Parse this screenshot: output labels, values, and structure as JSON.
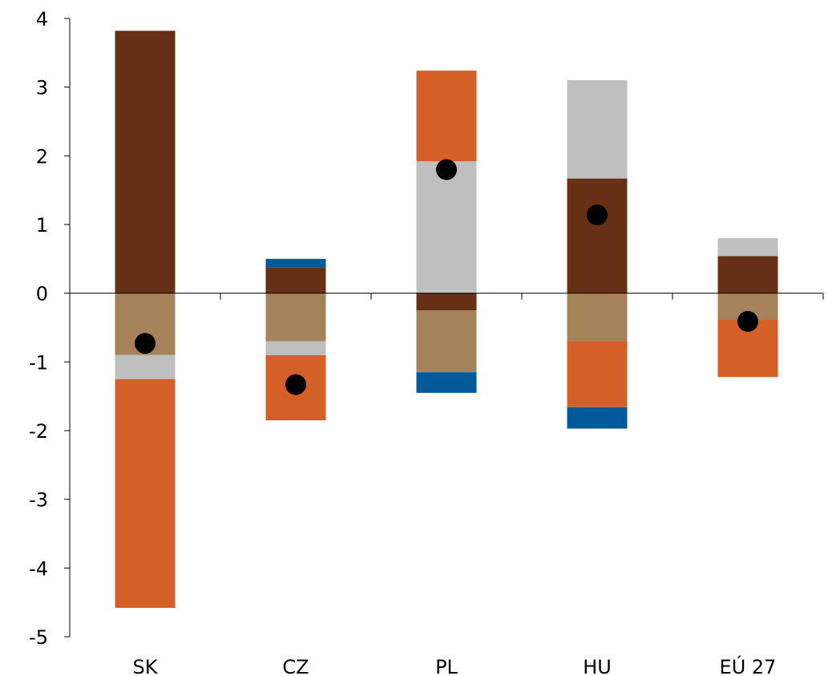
{
  "chart_data": {
    "type": "bar",
    "stacked": true,
    "categories": [
      "SK",
      "CZ",
      "PL",
      "HU",
      "EÚ 27"
    ],
    "yticks": [
      "4",
      "3",
      "2",
      "1",
      "0",
      "-1",
      "-2",
      "-3",
      "-4",
      "-5"
    ],
    "ylim": [
      -5,
      4
    ],
    "grid": false,
    "colors": {
      "dark_brown": "#673015",
      "tan": "#A5825A",
      "light_gray": "#BFBFBF",
      "orange": "#D46028",
      "blue": "#005A9A",
      "marker": "#000000"
    },
    "series": [
      {
        "color": "#673015",
        "values": [
          3.82,
          0.37,
          -0.25,
          1.67,
          0.54
        ]
      },
      {
        "color": "#A5825A",
        "values": [
          -0.9,
          -0.7,
          -0.9,
          -0.7,
          -0.38
        ]
      },
      {
        "color": "#BFBFBF",
        "values": [
          -0.35,
          -0.2,
          1.92,
          1.43,
          0.26
        ]
      },
      {
        "color": "#D46028",
        "values": [
          -3.33,
          -0.95,
          1.32,
          -0.96,
          -0.84
        ]
      },
      {
        "color": "#005A9A",
        "values": [
          0.0,
          0.13,
          -0.3,
          -0.31,
          0.0
        ]
      }
    ],
    "markers": [
      -0.73,
      -1.33,
      1.8,
      1.14,
      -0.41
    ]
  }
}
